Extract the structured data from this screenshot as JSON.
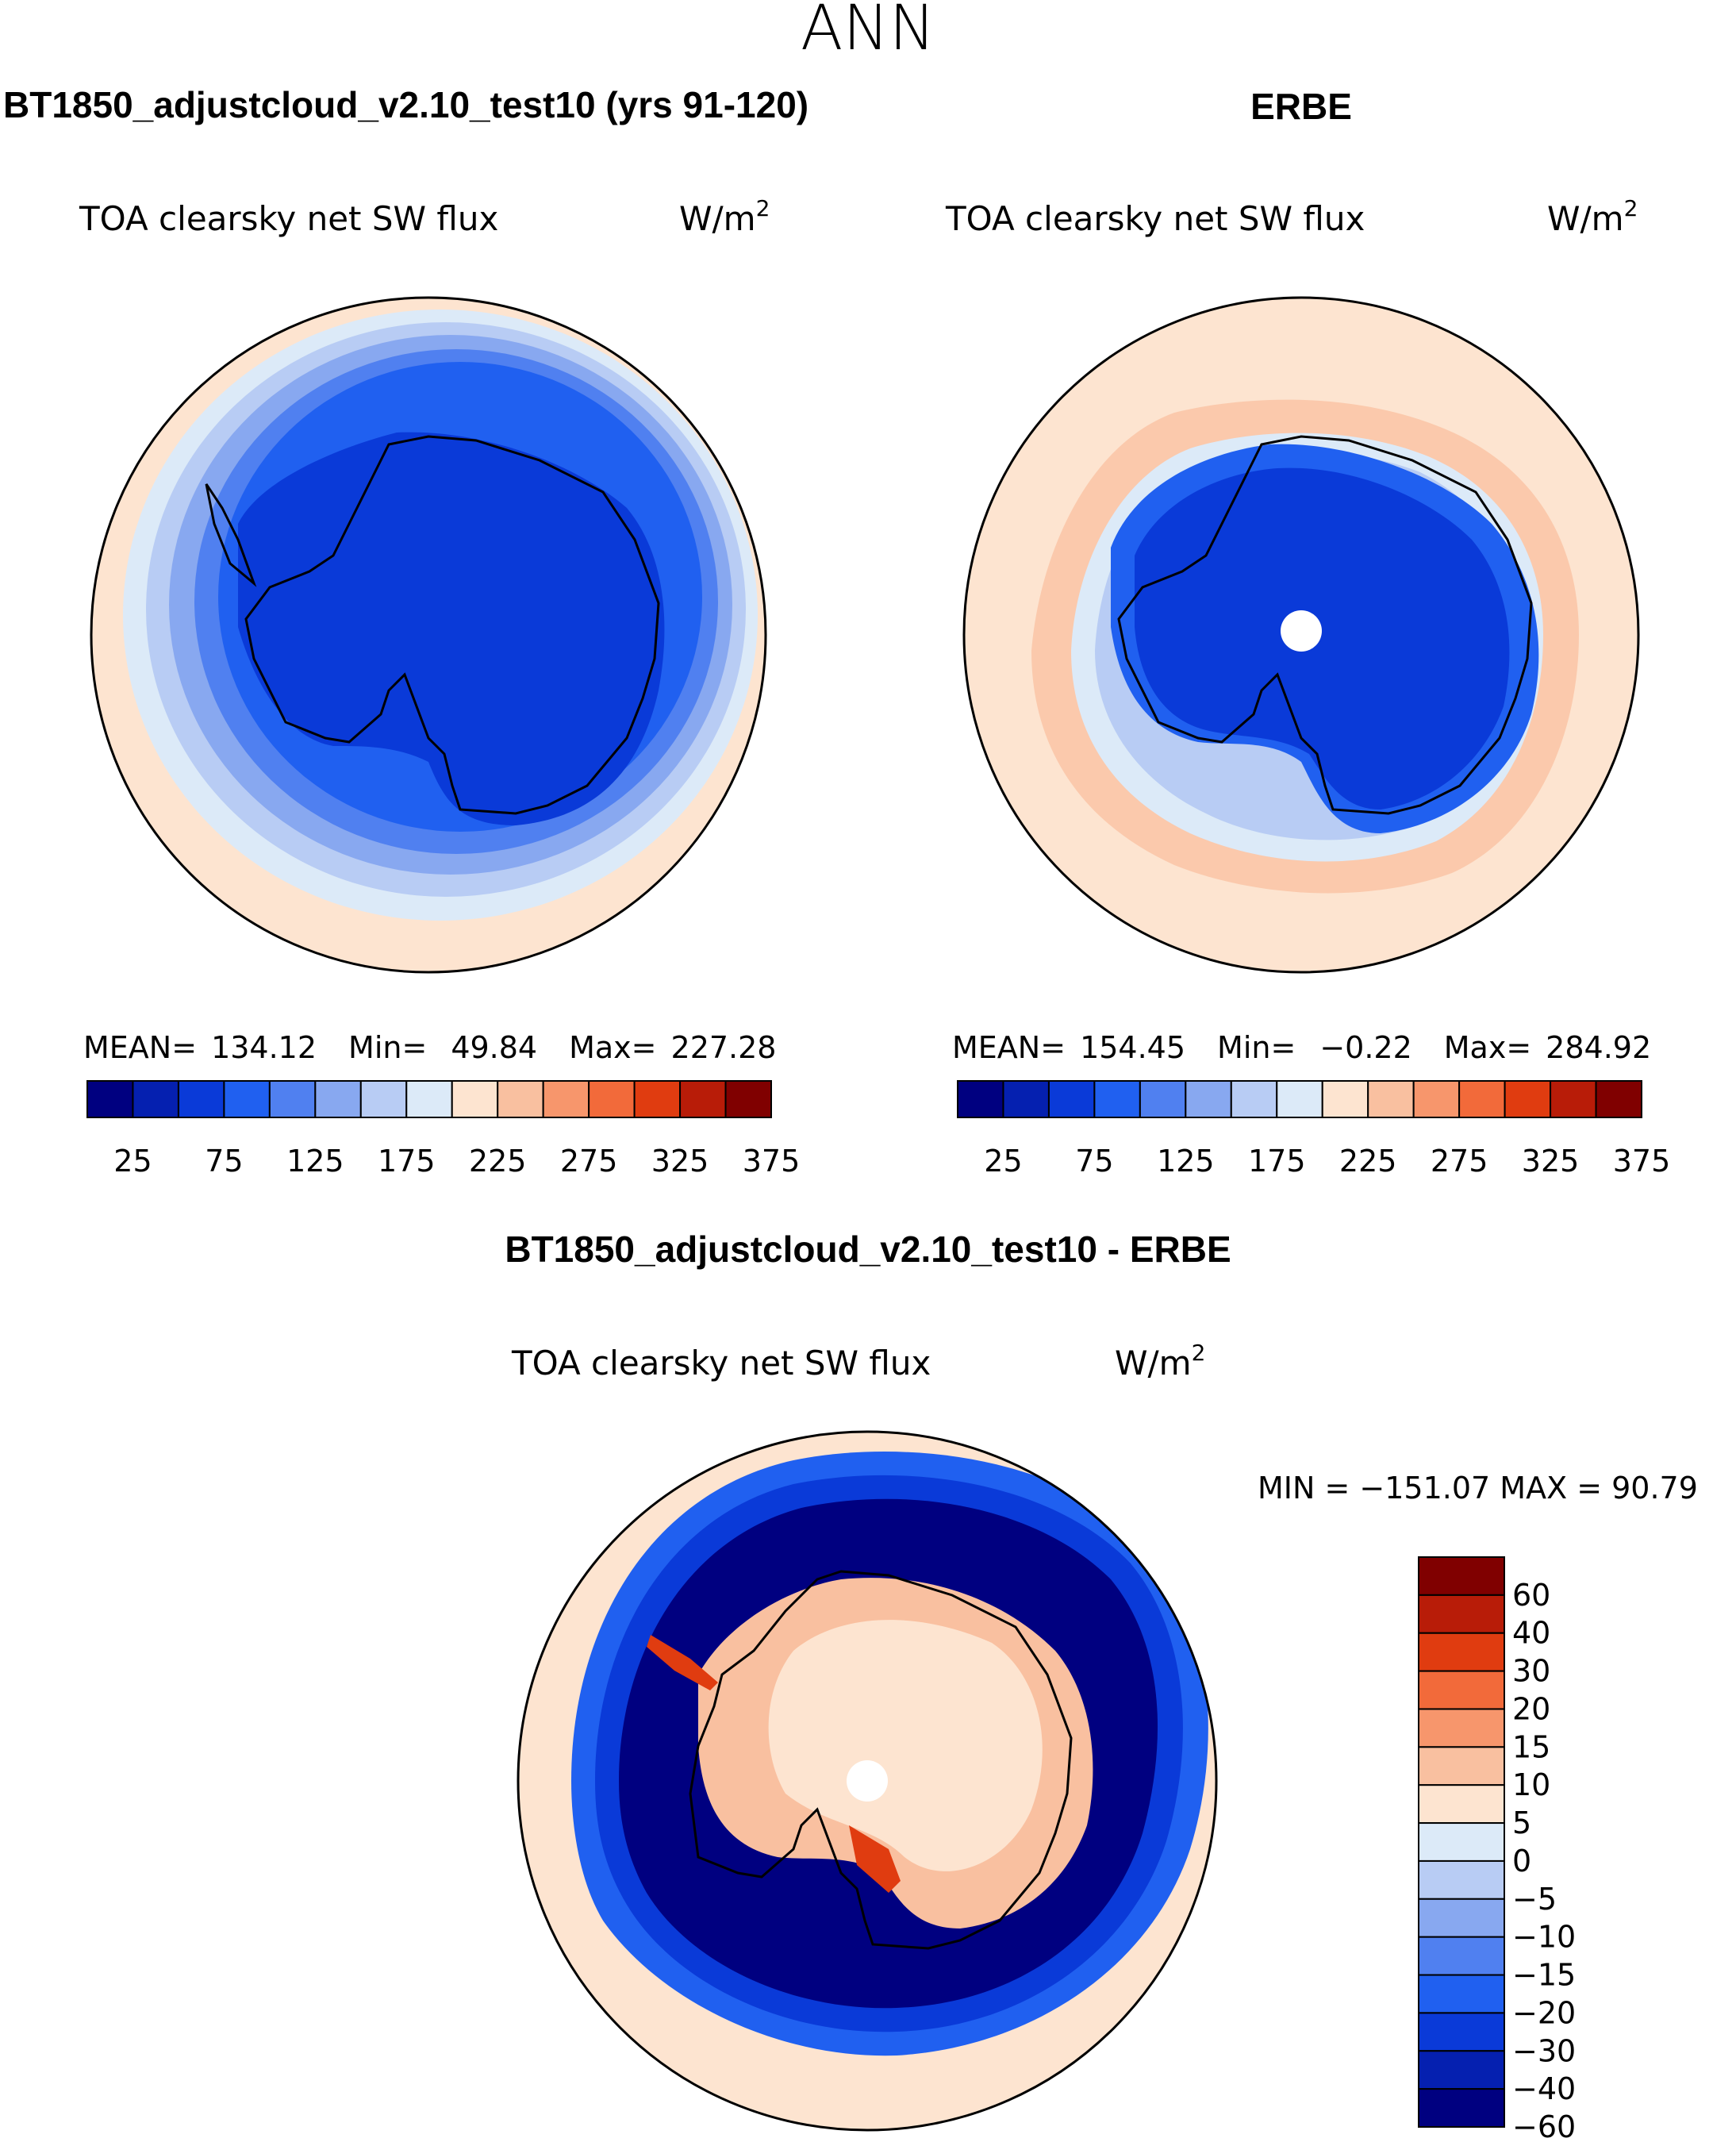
{
  "page_title": "ANN",
  "panel_left": {
    "case_title": "BT1850_adjustcloud_v2.10_test10 (yrs 91-120)",
    "var_title": "TOA clearsky net SW flux",
    "units": "W/m",
    "units_exp": "2",
    "mean_label": "MEAN=",
    "mean_value": "134.12",
    "min_label": "Min=",
    "min_value": "49.84",
    "max_label": "Max=",
    "max_value": "227.28"
  },
  "panel_right": {
    "case_title": "ERBE",
    "var_title": "TOA clearsky net SW flux",
    "units": "W/m",
    "units_exp": "2",
    "mean_label": "MEAN=",
    "mean_value": "154.45",
    "min_label": "Min=",
    "min_value": "−0.22",
    "max_label": "Max=",
    "max_value": "284.92"
  },
  "panel_diff": {
    "case_title": "BT1850_adjustcloud_v2.10_test10 - ERBE",
    "var_title": "TOA clearsky net SW flux",
    "units": "W/m",
    "units_exp": "2",
    "minmax_text": "MIN = −151.07 MAX =   90.79"
  },
  "colorbar_abs": {
    "colors": [
      "#000080",
      "#0520b0",
      "#0a3ad8",
      "#2060f0",
      "#5080f0",
      "#88a8f0",
      "#b8ccf4",
      "#dceaf8",
      "#fde4d0",
      "#f9c0a0",
      "#f7966c",
      "#f26a3a",
      "#e03c10",
      "#b81c08",
      "#800000"
    ],
    "tick_labels": [
      "25",
      "75",
      "125",
      "175",
      "225",
      "275",
      "325",
      "375"
    ]
  },
  "colorbar_diff": {
    "colors": [
      "#800000",
      "#b81c08",
      "#e03c10",
      "#f26a3a",
      "#f7966c",
      "#f9c0a0",
      "#fde4d0",
      "#dceaf8",
      "#b8ccf4",
      "#88a8f0",
      "#5080f0",
      "#2060f0",
      "#0a3ad8",
      "#0520b0",
      "#000080"
    ],
    "tick_labels": [
      "60",
      "40",
      "30",
      "20",
      "15",
      "10",
      "5",
      "0",
      "−5",
      "−10",
      "−15",
      "−20",
      "−30",
      "−40",
      "−60"
    ]
  }
}
